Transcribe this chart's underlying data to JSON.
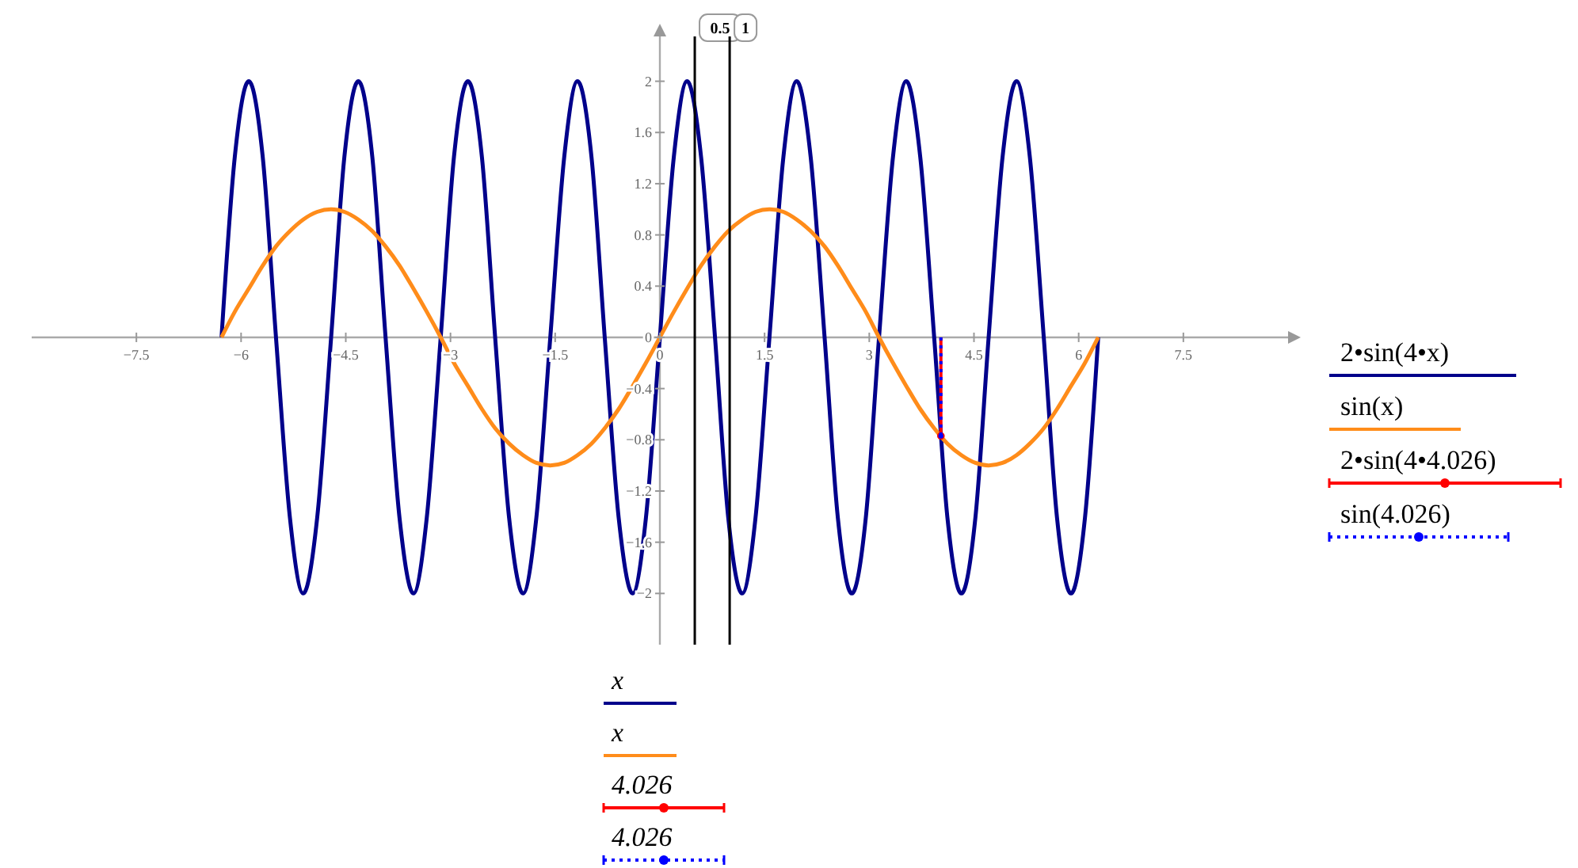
{
  "chart_data": {
    "type": "line",
    "x": [
      -6.28,
      -6.09,
      -5.89,
      -5.69,
      -5.5,
      -5.3,
      -5.11,
      -4.91,
      -4.71,
      -4.52,
      -4.32,
      -4.12,
      -3.93,
      -3.73,
      -3.53,
      -3.34,
      -3.14,
      -2.95,
      -2.75,
      -2.55,
      -2.36,
      -2.16,
      -1.96,
      -1.77,
      -1.57,
      -1.37,
      -1.18,
      -0.98,
      -0.79,
      -0.59,
      -0.39,
      -0.2,
      0,
      0.2,
      0.39,
      0.59,
      0.79,
      0.98,
      1.18,
      1.37,
      1.57,
      1.77,
      1.96,
      2.16,
      2.36,
      2.55,
      2.75,
      2.95,
      3.14,
      3.34,
      3.53,
      3.73,
      3.93,
      4.12,
      4.32,
      4.52,
      4.71,
      4.91,
      5.11,
      5.3,
      5.5,
      5.69,
      5.89,
      6.09,
      6.28
    ],
    "series": [
      {
        "name": "2•sin(4•x)",
        "color": "#00008b",
        "values": [
          0,
          1.41,
          2,
          1.41,
          0,
          -1.41,
          -2,
          -1.41,
          0,
          1.41,
          2,
          1.41,
          0,
          -1.41,
          -2,
          -1.41,
          0,
          1.41,
          2,
          1.41,
          0,
          -1.41,
          -2,
          -1.41,
          0,
          1.41,
          2,
          1.41,
          0,
          -1.41,
          -2,
          -1.41,
          0,
          1.41,
          2,
          1.41,
          0,
          -1.41,
          -2,
          -1.41,
          0,
          1.41,
          2,
          1.41,
          0,
          -1.41,
          -2,
          -1.41,
          0,
          1.41,
          2,
          1.41,
          0,
          -1.41,
          -2,
          -1.41,
          0,
          1.41,
          2,
          1.41,
          0,
          -1.41,
          -2,
          -1.41,
          0
        ]
      },
      {
        "name": "sin(x)",
        "color": "#ff8c1a",
        "values": [
          0,
          0.2,
          0.38,
          0.56,
          0.71,
          0.83,
          0.92,
          0.98,
          1,
          0.98,
          0.92,
          0.83,
          0.71,
          0.56,
          0.38,
          0.2,
          0,
          -0.2,
          -0.38,
          -0.56,
          -0.71,
          -0.83,
          -0.92,
          -0.98,
          -1,
          -0.98,
          -0.92,
          -0.83,
          -0.71,
          -0.56,
          -0.38,
          -0.2,
          0,
          0.2,
          0.38,
          0.56,
          0.71,
          0.83,
          0.92,
          0.98,
          1,
          0.98,
          0.92,
          0.83,
          0.71,
          0.56,
          0.38,
          0.2,
          0,
          -0.2,
          -0.38,
          -0.56,
          -0.71,
          -0.83,
          -0.92,
          -0.98,
          -1,
          -0.98,
          -0.92,
          -0.83,
          -0.71,
          -0.56,
          -0.38,
          -0.2,
          0
        ]
      },
      {
        "name": "2•sin(4•4.026)",
        "type": "lollipop",
        "color": "#ff0000",
        "x": [
          4.026
        ],
        "values": [
          -0.77
        ],
        "marker": "circle",
        "line_style": "solid"
      },
      {
        "name": "sin(4.026)",
        "type": "lollipop",
        "color": "#0000ff",
        "x": [
          4.026
        ],
        "values": [
          -0.77
        ],
        "marker": "circle",
        "line_style": "dotted"
      }
    ],
    "xlim": [
      -9,
      9
    ],
    "xticks": [
      {
        "value": -7.5,
        "label": "−7.5"
      },
      {
        "value": -6,
        "label": "−6"
      },
      {
        "value": -4.5,
        "label": "−4.5"
      },
      {
        "value": -3,
        "label": "−3"
      },
      {
        "value": -1.5,
        "label": "−1.5"
      },
      0,
      1.5,
      3,
      4.5,
      6,
      7.5
    ],
    "ylim": [
      -2.4,
      2.35
    ],
    "yticks": [
      {
        "value": -2,
        "label": "−2"
      },
      {
        "value": -1.6,
        "label": "−1.6"
      },
      {
        "value": -1.2,
        "label": "−1.2"
      },
      {
        "value": -0.8,
        "label": "−0.8"
      },
      {
        "value": -0.4,
        "label": "−0.4"
      },
      0,
      0.4,
      0.8,
      1.2,
      1.6,
      2
    ],
    "ref_lines": [
      {
        "axis": "x",
        "value": 0.5,
        "label": "0.5",
        "color": "#000000"
      },
      {
        "axis": "x",
        "value": 1,
        "label": "1",
        "color": "#000000"
      }
    ],
    "annotations": [
      "x",
      "x",
      "4.026",
      "4.026"
    ],
    "legend": "right",
    "marker": "none",
    "line_style": "solid"
  }
}
